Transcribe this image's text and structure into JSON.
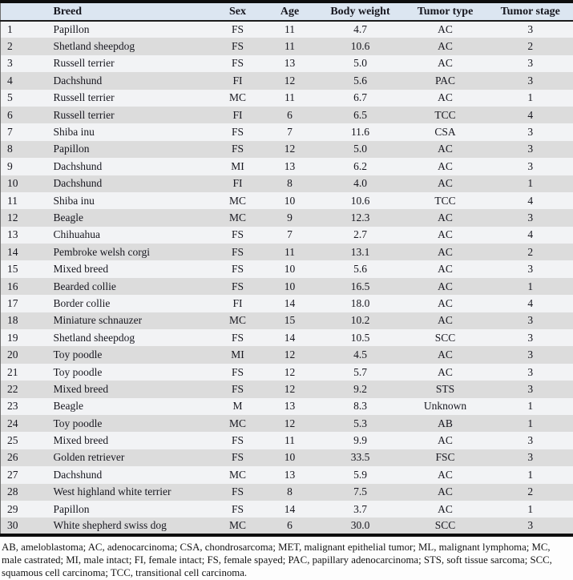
{
  "table": {
    "columns": [
      "",
      "Breed",
      "Sex",
      "Age",
      "Body weight",
      "Tumor type",
      "Tumor stage"
    ],
    "rows": [
      [
        "1",
        "Papillon",
        "FS",
        "11",
        "4.7",
        "AC",
        "3"
      ],
      [
        "2",
        "Shetland sheepdog",
        "FS",
        "11",
        "10.6",
        "AC",
        "2"
      ],
      [
        "3",
        "Russell terrier",
        "FS",
        "13",
        "5.0",
        "AC",
        "3"
      ],
      [
        "4",
        "Dachshund",
        "FI",
        "12",
        "5.6",
        "PAC",
        "3"
      ],
      [
        "5",
        "Russell terrier",
        "MC",
        "11",
        "6.7",
        "AC",
        "1"
      ],
      [
        "6",
        "Russell terrier",
        "FI",
        "6",
        "6.5",
        "TCC",
        "4"
      ],
      [
        "7",
        "Shiba inu",
        "FS",
        "7",
        "11.6",
        "CSA",
        "3"
      ],
      [
        "8",
        "Papillon",
        "FS",
        "12",
        "5.0",
        "AC",
        "3"
      ],
      [
        "9",
        "Dachshund",
        "MI",
        "13",
        "6.2",
        "AC",
        "3"
      ],
      [
        "10",
        "Dachshund",
        "FI",
        "8",
        "4.0",
        "AC",
        "1"
      ],
      [
        "11",
        "Shiba inu",
        "MC",
        "10",
        "10.6",
        "TCC",
        "4"
      ],
      [
        "12",
        "Beagle",
        "MC",
        "9",
        "12.3",
        "AC",
        "3"
      ],
      [
        "13",
        "Chihuahua",
        "FS",
        "7",
        "2.7",
        "AC",
        "4"
      ],
      [
        "14",
        "Pembroke welsh corgi",
        "FS",
        "11",
        "13.1",
        "AC",
        "2"
      ],
      [
        "15",
        "Mixed breed",
        "FS",
        "10",
        "5.6",
        "AC",
        "3"
      ],
      [
        "16",
        "Bearded collie",
        "FS",
        "10",
        "16.5",
        "AC",
        "1"
      ],
      [
        "17",
        "Border collie",
        "FI",
        "14",
        "18.0",
        "AC",
        "4"
      ],
      [
        "18",
        "Miniature schnauzer",
        "MC",
        "15",
        "10.2",
        "AC",
        "3"
      ],
      [
        "19",
        "Shetland sheepdog",
        "FS",
        "14",
        "10.5",
        "SCC",
        "3"
      ],
      [
        "20",
        "Toy poodle",
        "MI",
        "12",
        "4.5",
        "AC",
        "3"
      ],
      [
        "21",
        "Toy poodle",
        "FS",
        "12",
        "5.7",
        "AC",
        "3"
      ],
      [
        "22",
        "Mixed breed",
        "FS",
        "12",
        "9.2",
        "STS",
        "3"
      ],
      [
        "23",
        "Beagle",
        "M",
        "13",
        "8.3",
        "Unknown",
        "1"
      ],
      [
        "24",
        "Toy poodle",
        "MC",
        "12",
        "5.3",
        "AB",
        "1"
      ],
      [
        "25",
        "Mixed breed",
        "FS",
        "11",
        "9.9",
        "AC",
        "3"
      ],
      [
        "26",
        "Golden retriever",
        "FS",
        "10",
        "33.5",
        "FSC",
        "3"
      ],
      [
        "27",
        "Dachshund",
        "MC",
        "13",
        "5.9",
        "AC",
        "1"
      ],
      [
        "28",
        "West highland white terrier",
        "FS",
        "8",
        "7.5",
        "AC",
        "2"
      ],
      [
        "29",
        "Papillon",
        "FS",
        "14",
        "3.7",
        "AC",
        "1"
      ],
      [
        "30",
        "White shepherd swiss dog",
        "MC",
        "6",
        "30.0",
        "SCC",
        "3"
      ]
    ]
  },
  "footnote": "AB, ameloblastoma; AC, adenocarcinoma; CSA, chondrosarcoma; MET, malignant epithelial tumor; ML, malignant lymphoma; MC, male castrated; MI, male intact; FI, female intact; FS, female spayed; PAC, papillary adenocarcinoma; STS, soft tissue sarcoma; SCC, squamous cell carcinoma; TCC, transitional cell carcinoma.",
  "colors": {
    "header_bg": "#dce6f1",
    "row_even_bg": "#dcdcdc",
    "row_odd_bg": "#f2f3f5",
    "rule": "#0e0e0e",
    "text": "#17171f"
  }
}
